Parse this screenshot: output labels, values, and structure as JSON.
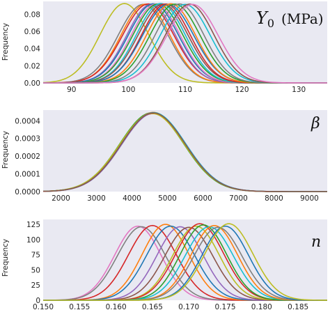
{
  "palette": [
    "#1f77b4",
    "#ff7f0e",
    "#2ca02c",
    "#d62728",
    "#9467bd",
    "#8c564b",
    "#e377c2",
    "#7f7f7f",
    "#bcbd22",
    "#17becf"
  ],
  "chart_data": [
    {
      "type": "line",
      "panel_label": {
        "main": "Y",
        "subscript": "0",
        "unit": "(MPa)"
      },
      "ylabel": "Frequency",
      "xlim": [
        85,
        135
      ],
      "ylim": [
        0,
        0.095
      ],
      "xticks": [
        "90",
        "100",
        "110",
        "120",
        "130"
      ],
      "xtick_values": [
        90,
        100,
        110,
        120,
        130
      ],
      "yticks": [
        "0.00",
        "0.02",
        "0.04",
        "0.06",
        "0.08"
      ],
      "ytick_values": [
        0,
        0.02,
        0.04,
        0.06,
        0.08
      ],
      "grid": false,
      "series": [
        {
          "mean": 99.3,
          "sd": 4.3,
          "peak": 0.0925,
          "color": "#bcbd22"
        },
        {
          "mean": 102.6,
          "sd": 4.4,
          "peak": 0.0915,
          "color": "#7f7f7f"
        },
        {
          "mean": 103.0,
          "sd": 4.3,
          "peak": 0.0918,
          "color": "#ff7f0e"
        },
        {
          "mean": 103.5,
          "sd": 4.5,
          "peak": 0.092,
          "color": "#d62728"
        },
        {
          "mean": 104.0,
          "sd": 4.3,
          "peak": 0.0915,
          "color": "#9467bd"
        },
        {
          "mean": 104.4,
          "sd": 4.4,
          "peak": 0.0922,
          "color": "#1f77b4"
        },
        {
          "mean": 104.8,
          "sd": 4.3,
          "peak": 0.0918,
          "color": "#e377c2"
        },
        {
          "mean": 105.2,
          "sd": 4.4,
          "peak": 0.092,
          "color": "#2ca02c"
        },
        {
          "mean": 105.7,
          "sd": 4.3,
          "peak": 0.0925,
          "color": "#17becf"
        },
        {
          "mean": 106.1,
          "sd": 4.4,
          "peak": 0.0918,
          "color": "#8c564b"
        },
        {
          "mean": 106.6,
          "sd": 4.3,
          "peak": 0.092,
          "color": "#d62728"
        },
        {
          "mean": 107.0,
          "sd": 4.5,
          "peak": 0.0915,
          "color": "#1f77b4"
        },
        {
          "mean": 107.5,
          "sd": 4.3,
          "peak": 0.0922,
          "color": "#ff7f0e"
        },
        {
          "mean": 108.2,
          "sd": 4.4,
          "peak": 0.0918,
          "color": "#2ca02c"
        },
        {
          "mean": 109.0,
          "sd": 4.3,
          "peak": 0.092,
          "color": "#7f7f7f"
        },
        {
          "mean": 110.0,
          "sd": 4.4,
          "peak": 0.0915,
          "color": "#17becf"
        },
        {
          "mean": 110.8,
          "sd": 4.3,
          "peak": 0.0918,
          "color": "#8c564b"
        },
        {
          "mean": 111.3,
          "sd": 4.5,
          "peak": 0.0915,
          "color": "#e377c2"
        }
      ]
    },
    {
      "type": "line",
      "panel_label": {
        "main": "β"
      },
      "ylabel": "Frequency",
      "xlim": [
        1500,
        9500
      ],
      "ylim": [
        0,
        0.00046
      ],
      "xticks": [
        "2000",
        "3000",
        "4000",
        "5000",
        "6000",
        "7000",
        "8000",
        "9000"
      ],
      "xtick_values": [
        2000,
        3000,
        4000,
        5000,
        6000,
        7000,
        8000,
        9000
      ],
      "yticks": [
        "0.0000",
        "0.0001",
        "0.0002",
        "0.0003",
        "0.0004"
      ],
      "ytick_values": [
        0,
        0.0001,
        0.0002,
        0.0003,
        0.0004
      ],
      "grid": false,
      "series": [
        {
          "mean": 4560,
          "sd": 900,
          "peak": 0.000445,
          "color": "#2ca02c"
        },
        {
          "mean": 4580,
          "sd": 905,
          "peak": 0.000442,
          "color": "#1f77b4"
        },
        {
          "mean": 4600,
          "sd": 895,
          "peak": 0.000447,
          "color": "#ff7f0e"
        },
        {
          "mean": 4590,
          "sd": 910,
          "peak": 0.00044,
          "color": "#d62728"
        },
        {
          "mean": 4620,
          "sd": 900,
          "peak": 0.000443,
          "color": "#9467bd"
        },
        {
          "mean": 4570,
          "sd": 908,
          "peak": 0.000441,
          "color": "#bcbd22"
        },
        {
          "mean": 4610,
          "sd": 902,
          "peak": 0.000446,
          "color": "#17becf"
        },
        {
          "mean": 4600,
          "sd": 898,
          "peak": 0.000444,
          "color": "#8c564b"
        }
      ]
    },
    {
      "type": "line",
      "panel_label": {
        "main": "n"
      },
      "ylabel": "Frequency",
      "xlim": [
        0.15,
        0.189
      ],
      "ylim": [
        0,
        133
      ],
      "xticks": [
        "0.150",
        "0.155",
        "0.160",
        "0.165",
        "0.170",
        "0.175",
        "0.180",
        "0.185"
      ],
      "xtick_values": [
        0.15,
        0.155,
        0.16,
        0.165,
        0.17,
        0.175,
        0.18,
        0.185
      ],
      "yticks": [
        "0",
        "25",
        "50",
        "75",
        "100",
        "125"
      ],
      "ytick_values": [
        0,
        25,
        50,
        75,
        100,
        125
      ],
      "grid": false,
      "series": [
        {
          "mean": 0.163,
          "sd": 0.0032,
          "peak": 122,
          "color": "#e377c2"
        },
        {
          "mean": 0.1635,
          "sd": 0.0033,
          "peak": 121,
          "color": "#7f7f7f"
        },
        {
          "mean": 0.165,
          "sd": 0.0033,
          "peak": 123,
          "color": "#d62728"
        },
        {
          "mean": 0.1668,
          "sd": 0.0032,
          "peak": 125,
          "color": "#ff7f0e"
        },
        {
          "mean": 0.1675,
          "sd": 0.0033,
          "peak": 122,
          "color": "#1f77b4"
        },
        {
          "mean": 0.1688,
          "sd": 0.0032,
          "peak": 121,
          "color": "#9467bd"
        },
        {
          "mean": 0.17,
          "sd": 0.0033,
          "peak": 120,
          "color": "#8c564b"
        },
        {
          "mean": 0.171,
          "sd": 0.0032,
          "peak": 122,
          "color": "#bcbd22"
        },
        {
          "mean": 0.1715,
          "sd": 0.0033,
          "peak": 126,
          "color": "#d62728"
        },
        {
          "mean": 0.172,
          "sd": 0.0032,
          "peak": 124,
          "color": "#2ca02c"
        },
        {
          "mean": 0.1728,
          "sd": 0.0033,
          "peak": 121,
          "color": "#17becf"
        },
        {
          "mean": 0.1735,
          "sd": 0.0032,
          "peak": 123,
          "color": "#ff7f0e"
        },
        {
          "mean": 0.174,
          "sd": 0.0033,
          "peak": 120,
          "color": "#7f7f7f"
        },
        {
          "mean": 0.175,
          "sd": 0.0032,
          "peak": 122,
          "color": "#1f77b4"
        },
        {
          "mean": 0.1755,
          "sd": 0.0033,
          "peak": 126,
          "color": "#bcbd22"
        }
      ]
    }
  ]
}
